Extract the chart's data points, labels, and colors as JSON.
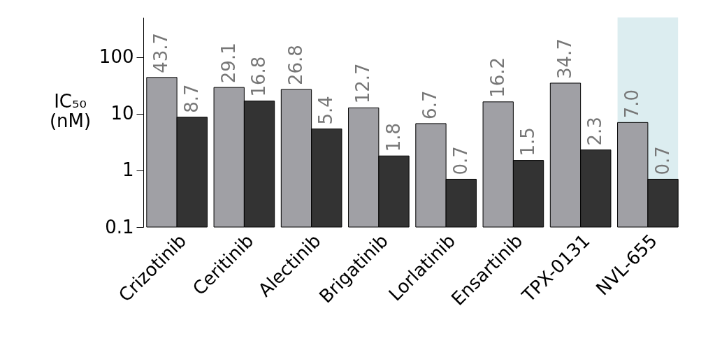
{
  "chart_data": {
    "type": "bar",
    "ylabel": "IC₅₀ (nM)",
    "categories": [
      "Crizotinib",
      "Ceritinib",
      "Alectinib",
      "Brigatinib",
      "Lorlatinib",
      "Ensartinib",
      "TPX-0131",
      "NVL-655"
    ],
    "series": [
      {
        "color": "#a0a0a5",
        "values": [
          43.7,
          29.1,
          26.8,
          12.7,
          6.7,
          16.2,
          34.7,
          7.0
        ],
        "value_labels": [
          "43.7",
          "29.1",
          "26.8",
          "12.7",
          "6.7",
          "16.2",
          "34.7",
          "7.0"
        ]
      },
      {
        "color": "#333333",
        "values": [
          8.7,
          16.8,
          5.4,
          1.8,
          0.7,
          1.5,
          2.3,
          0.7
        ],
        "value_labels": [
          "8.7",
          "16.8",
          "5.4",
          "1.8",
          "0.7",
          "1.5",
          "2.3",
          "0.7"
        ]
      }
    ],
    "log": true,
    "ylim": [
      0.1,
      500
    ],
    "yticks": [
      0.1,
      1,
      10,
      100
    ],
    "grid": false,
    "legend": false,
    "bands": [
      {
        "axis": "x",
        "from": "NVL-655",
        "to": "NVL-655",
        "color": "#dcedf0"
      }
    ]
  }
}
